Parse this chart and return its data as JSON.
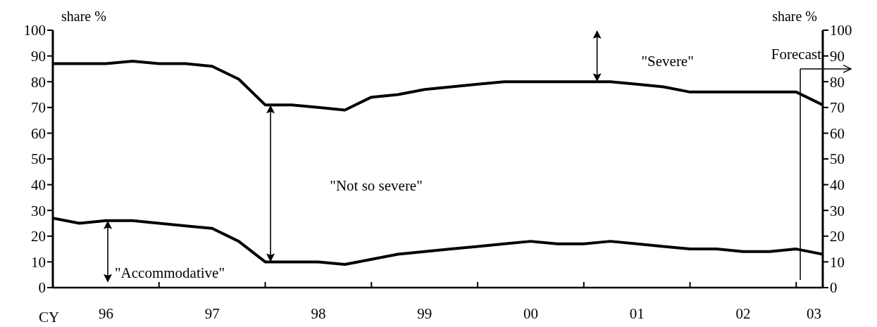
{
  "chart_data": {
    "type": "line",
    "xlabel": "CY",
    "ylabel": "share %",
    "y2label": "share %",
    "x": [
      "1996-01",
      "1996-04",
      "1996-07",
      "1996-10",
      "1997-01",
      "1997-04",
      "1997-07",
      "1997-10",
      "1998-01",
      "1998-04",
      "1998-07",
      "1998-10",
      "1999-01",
      "1999-04",
      "1999-07",
      "1999-10",
      "2000-01",
      "2000-04",
      "2000-07",
      "2000-10",
      "2001-01",
      "2001-04",
      "2001-07",
      "2001-10",
      "2002-01",
      "2002-04",
      "2002-07",
      "2002-10",
      "2003-01",
      "2003-04"
    ],
    "series": [
      {
        "color": "#000000",
        "values": [
          87,
          87,
          87,
          88,
          87,
          87,
          86,
          81,
          71,
          71,
          70,
          69,
          74,
          75,
          77,
          78,
          79,
          80,
          80,
          80,
          80,
          80,
          79,
          78,
          76,
          76,
          76,
          76,
          76,
          71
        ]
      },
      {
        "color": "#000000",
        "values": [
          27,
          25,
          26,
          26,
          25,
          24,
          23,
          18,
          10,
          10,
          10,
          9,
          11,
          13,
          14,
          15,
          16,
          17,
          18,
          17,
          17,
          18,
          17,
          16,
          15,
          15,
          14,
          14,
          15,
          13
        ]
      }
    ],
    "xlim": [
      "1996-01",
      "2003-04"
    ],
    "xticks": [
      {
        "value": "1996-01",
        "label": null
      },
      {
        "value": "1996-07",
        "label": "96"
      },
      {
        "value": "1997-01",
        "label": null
      },
      {
        "value": "1997-07",
        "label": "97"
      },
      {
        "value": "1998-01",
        "label": null
      },
      {
        "value": "1998-07",
        "label": "98"
      },
      {
        "value": "1999-01",
        "label": null
      },
      {
        "value": "1999-07",
        "label": "99"
      },
      {
        "value": "2000-01",
        "label": null
      },
      {
        "value": "2000-07",
        "label": "00"
      },
      {
        "value": "2001-01",
        "label": null
      },
      {
        "value": "2001-07",
        "label": "01"
      },
      {
        "value": "2002-01",
        "label": null
      },
      {
        "value": "2002-07",
        "label": "02"
      },
      {
        "value": "2003-01",
        "label": null
      },
      {
        "value": "2003-03",
        "label": "03"
      }
    ],
    "ylim": [
      0,
      100
    ],
    "yticks": [
      0,
      10,
      20,
      30,
      40,
      50,
      60,
      70,
      80,
      90,
      100
    ],
    "y2lim": [
      0,
      100
    ],
    "y2ticks": [
      0,
      10,
      20,
      30,
      40,
      50,
      60,
      70,
      80,
      90,
      100
    ],
    "annotations": [
      "\"Severe\"",
      "\"Not so severe\"",
      "\"Accommodative\""
    ],
    "ref_lines": [
      {
        "axis": "x",
        "value": "2003-01-15",
        "label": "Forecast"
      }
    ],
    "marker": "none",
    "line_style": "solid",
    "grid": false
  }
}
